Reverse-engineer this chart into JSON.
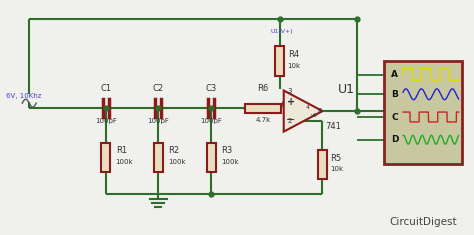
{
  "bg_color": "#f0f0ec",
  "wire_color": "#2d6e2d",
  "component_color": "#8b1a1a",
  "text_color": "#333333",
  "blue_label_color": "#4444cc",
  "source_label": "6V, 10Khz",
  "components": {
    "C1": "100pF",
    "C2": "100pF",
    "C3": "100pF",
    "R1": "100k",
    "R2": "100k",
    "R3": "100k",
    "R4": "10k",
    "R5": "10k",
    "R6": "4.7k",
    "U1_num": "741",
    "U1_label": "U1"
  },
  "scope_bg": "#c8c8a0",
  "scope_border": "#8b2020",
  "scope_labels": [
    "A",
    "B",
    "C",
    "D"
  ],
  "scope_colors": [
    "#dddd00",
    "#2222cc",
    "#cc2222",
    "#22aa22"
  ],
  "watermark_plain": "Circuit",
  "watermark_italic": "Digest"
}
